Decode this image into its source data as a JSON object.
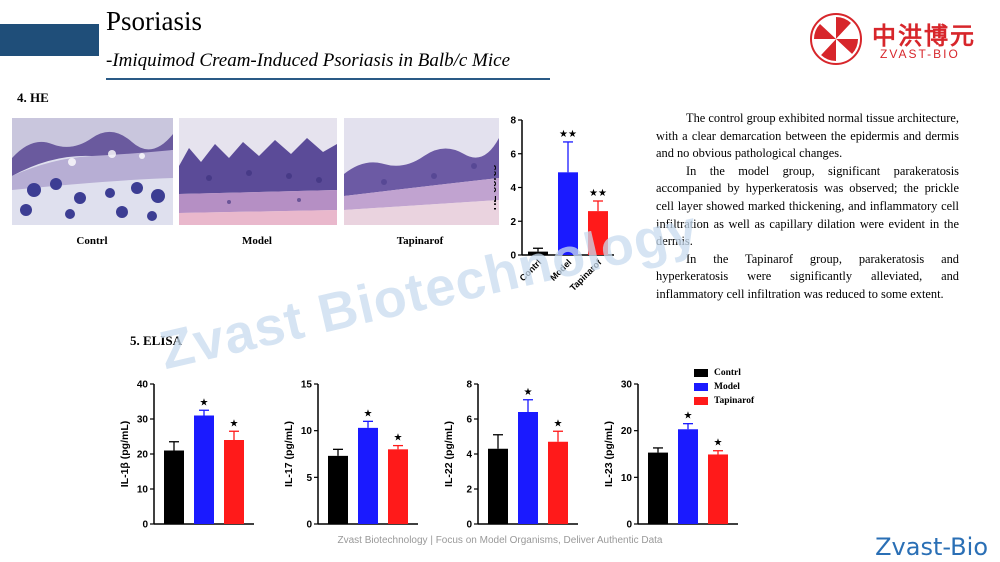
{
  "header": {
    "title": "Psoriasis",
    "subtitle": "-Imiquimod Cream-Induced Psoriasis in Balb/c Mice"
  },
  "logo": {
    "cn": "中洪博元",
    "en": "ZVAST-BIO"
  },
  "sections": {
    "he": "4. HE",
    "elisa": "5. ELISA"
  },
  "he_images": [
    {
      "caption": "Contrl"
    },
    {
      "caption": "Model"
    },
    {
      "caption": "Tapinarof"
    }
  ],
  "colors": {
    "contrl": "#000000",
    "model": "#1a1aff",
    "tapinarof": "#ff1a1a"
  },
  "body_text": [
    "The control group exhibited normal tissue architecture, with a clear demarcation between the epidermis and dermis and no obvious pathological changes.",
    "In the model group, significant parakeratosis accompanied by hyperkeratosis was observed; the prickle cell layer showed marked thickening, and inflammatory cell infiltration as well as capillary dilation were evident in the dermis.",
    "In the Tapinarof group, parakeratosis and hyperkeratosis were significantly alleviated, and inflammatory cell infiltration was reduced to some extent."
  ],
  "watermark": "Zvast Biotechnology",
  "footer": "Zvast Biotechnology | Focus on Model Organisms, Deliver Authentic Data",
  "brand": "Zvast-Bio",
  "chart_data": [
    {
      "type": "bar",
      "categories": [
        "Contrl",
        "Model",
        "Tapinarof"
      ],
      "values": [
        0.2,
        4.9,
        2.6
      ],
      "errors": [
        0.2,
        1.8,
        0.6
      ],
      "stars": [
        "",
        "★★",
        "★★"
      ],
      "ylabel": "HE cores",
      "ylim": [
        0,
        8
      ],
      "yticks": [
        0,
        2,
        4,
        6,
        8
      ],
      "show_xlabels": true
    },
    {
      "type": "bar",
      "categories": [
        "Contrl",
        "Model",
        "Tapinarof"
      ],
      "values": [
        21,
        31,
        24
      ],
      "errors": [
        2.5,
        1.5,
        2.5
      ],
      "stars": [
        "",
        "★",
        "★"
      ],
      "ylabel": "IL-1β (pg/mL)",
      "ylim": [
        0,
        40
      ],
      "yticks": [
        0,
        10,
        20,
        30,
        40
      ],
      "show_xlabels": false
    },
    {
      "type": "bar",
      "categories": [
        "Contrl",
        "Model",
        "Tapinarof"
      ],
      "values": [
        7.3,
        10.3,
        8.0
      ],
      "errors": [
        0.7,
        0.7,
        0.4
      ],
      "stars": [
        "",
        "★",
        "★"
      ],
      "ylabel": "IL-17 (pg/mL)",
      "ylim": [
        0,
        15
      ],
      "yticks": [
        0,
        5,
        10,
        15
      ],
      "show_xlabels": false
    },
    {
      "type": "bar",
      "categories": [
        "Contrl",
        "Model",
        "Tapinarof"
      ],
      "values": [
        4.3,
        6.4,
        4.7
      ],
      "errors": [
        0.8,
        0.7,
        0.6
      ],
      "stars": [
        "",
        "★",
        "★"
      ],
      "ylabel": "IL-22 (pg/mL)",
      "ylim": [
        0,
        8
      ],
      "yticks": [
        0,
        2,
        4,
        6,
        8
      ],
      "show_xlabels": false
    },
    {
      "type": "bar",
      "categories": [
        "Contrl",
        "Model",
        "Tapinarof"
      ],
      "values": [
        15.3,
        20.3,
        14.9
      ],
      "errors": [
        1.0,
        1.2,
        0.8
      ],
      "stars": [
        "",
        "★",
        "★"
      ],
      "ylabel": "IL-23 (pg/mL)",
      "ylim": [
        0,
        30
      ],
      "yticks": [
        0,
        10,
        20,
        30
      ],
      "show_xlabels": false
    }
  ],
  "legend": [
    "Contrl",
    "Model",
    "Tapinarof"
  ]
}
